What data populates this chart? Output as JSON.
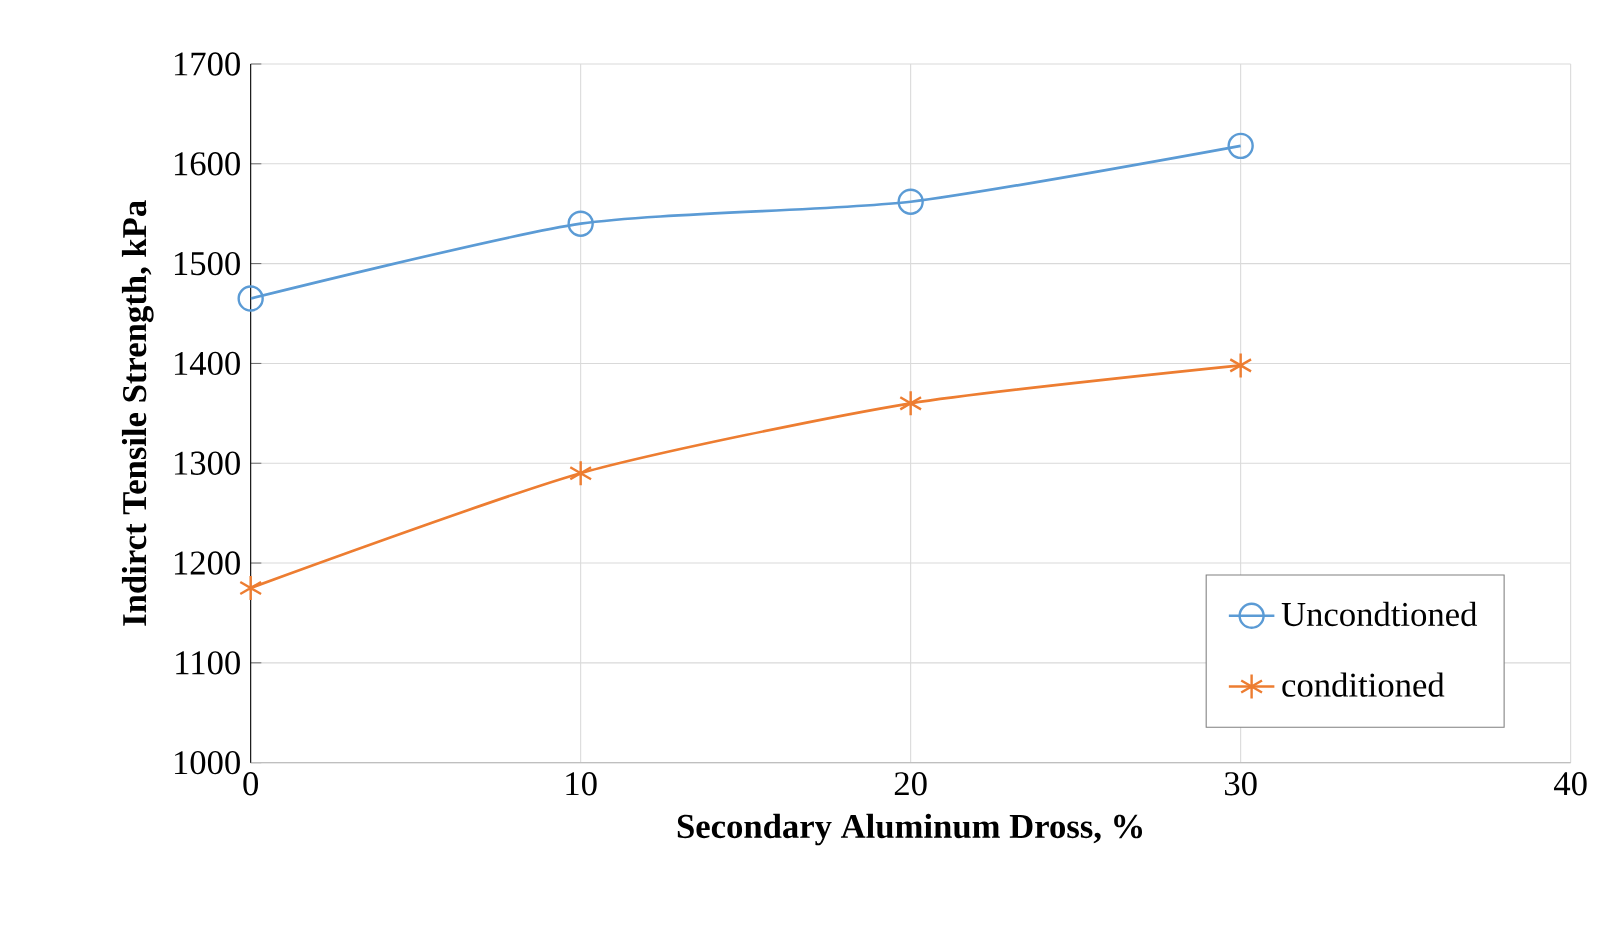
{
  "chart_data": {
    "type": "line",
    "xlabel": "Secondary Aluminum Dross, %",
    "ylabel": "Indirct Tensile Strength, kPa",
    "x": [
      0,
      10,
      20,
      30
    ],
    "xlim": [
      0,
      40
    ],
    "xticks": [
      0,
      10,
      20,
      30,
      40
    ],
    "ylim": [
      1000,
      1700
    ],
    "yticks": [
      1000,
      1100,
      1200,
      1300,
      1400,
      1500,
      1600,
      1700
    ],
    "grid": true,
    "legend": "bottom right",
    "series": [
      {
        "name": "Uncondtioned",
        "color": "#5b9bd5",
        "marker": "circle",
        "values": [
          1465,
          1540,
          1562,
          1618
        ]
      },
      {
        "name": "conditioned",
        "color": "#ed7d31",
        "marker": "cross",
        "values": [
          1175,
          1290,
          1360,
          1398
        ]
      }
    ]
  }
}
